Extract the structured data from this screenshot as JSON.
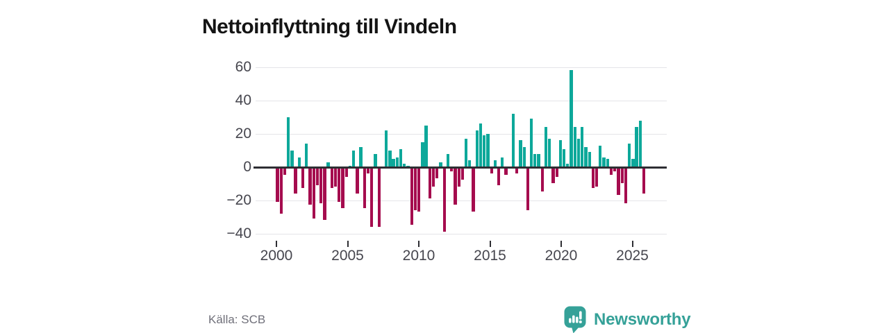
{
  "header": {
    "title": "Nettoinflyttning till Vindeln"
  },
  "footer": {
    "source": "Källa: SCB",
    "brand_name": "Newsworthy"
  },
  "icons": {
    "brand_icon": "bar-chart-speech-bubble-icon"
  },
  "colors": {
    "positive_bar": "#0da89a",
    "negative_bar": "#a50c4e",
    "gridline": "#e4e4e8",
    "zero_line": "#2e2e33",
    "axis_label": "#46464e",
    "title": "#141414",
    "source": "#6f6f79",
    "brand_teal": "#35a198"
  },
  "chart_data": {
    "type": "bar",
    "title": "Nettoinflyttning till Vindeln",
    "frequency": "quarterly",
    "start_period": "2000 Q1",
    "end_period": "2025 Q2",
    "x_tick_labels": [
      "2000",
      "2005",
      "2010",
      "2015",
      "2020",
      "2025"
    ],
    "y_tick_labels": [
      "60",
      "40",
      "20",
      "0",
      "−20",
      "−40"
    ],
    "y_tick_values": [
      60,
      40,
      20,
      0,
      -20,
      -40
    ],
    "ylim": [
      -45,
      62
    ],
    "grid": true,
    "legend": false,
    "values": [
      -20,
      -27,
      -4,
      30,
      10,
      -15,
      6,
      -12,
      14,
      -22,
      -30,
      -10,
      -21,
      -31,
      3,
      -12,
      -11,
      -20,
      -24,
      -5,
      1,
      10,
      -15,
      12,
      -24,
      -3,
      -35,
      8,
      -35,
      0,
      22,
      10,
      5,
      6,
      11,
      2,
      1,
      -34,
      -25,
      -26,
      15,
      25,
      -18,
      -11,
      -6,
      3,
      -38,
      8,
      -2,
      -22,
      -11,
      -7,
      17,
      4,
      -26,
      22,
      26,
      19,
      20,
      -3,
      4,
      -10,
      6,
      -4,
      0,
      32,
      -3,
      16,
      12,
      -25,
      29,
      8,
      8,
      -14,
      24,
      17,
      -9,
      -5,
      16,
      11,
      2,
      58,
      24,
      17,
      24,
      12,
      9,
      -12,
      -11,
      13,
      6,
      5,
      -4,
      -2,
      -16,
      -9,
      -21,
      14,
      5,
      24,
      28,
      -15
    ]
  }
}
